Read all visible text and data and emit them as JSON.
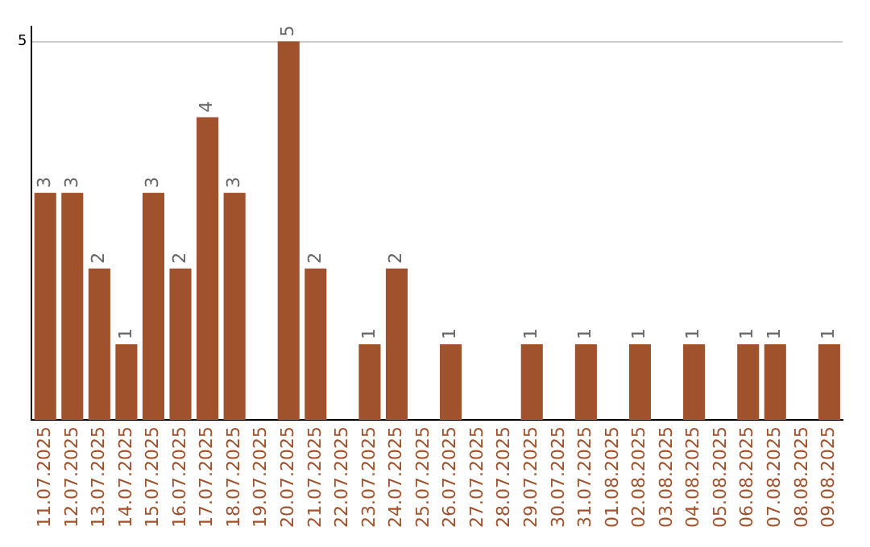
{
  "chart_data": {
    "type": "bar",
    "categories": [
      "11.07.2025",
      "12.07.2025",
      "13.07.2025",
      "14.07.2025",
      "15.07.2025",
      "16.07.2025",
      "17.07.2025",
      "18.07.2025",
      "19.07.2025",
      "20.07.2025",
      "21.07.2025",
      "22.07.2025",
      "23.07.2025",
      "24.07.2025",
      "25.07.2025",
      "26.07.2025",
      "27.07.2025",
      "28.07.2025",
      "29.07.2025",
      "30.07.2025",
      "31.07.2025",
      "01.08.2025",
      "02.08.2025",
      "03.08.2025",
      "04.08.2025",
      "05.08.2025",
      "06.08.2025",
      "07.08.2025",
      "08.08.2025",
      "09.08.2025"
    ],
    "values": [
      3,
      3,
      2,
      1,
      3,
      2,
      4,
      3,
      null,
      5,
      2,
      null,
      1,
      2,
      null,
      1,
      null,
      null,
      1,
      null,
      1,
      null,
      1,
      null,
      1,
      null,
      1,
      1,
      null,
      1
    ],
    "color": "#a0522d",
    "ylim": [
      0,
      5.2
    ],
    "yticks": [
      5
    ],
    "grid": "y",
    "data_labels": true,
    "legend": false
  }
}
